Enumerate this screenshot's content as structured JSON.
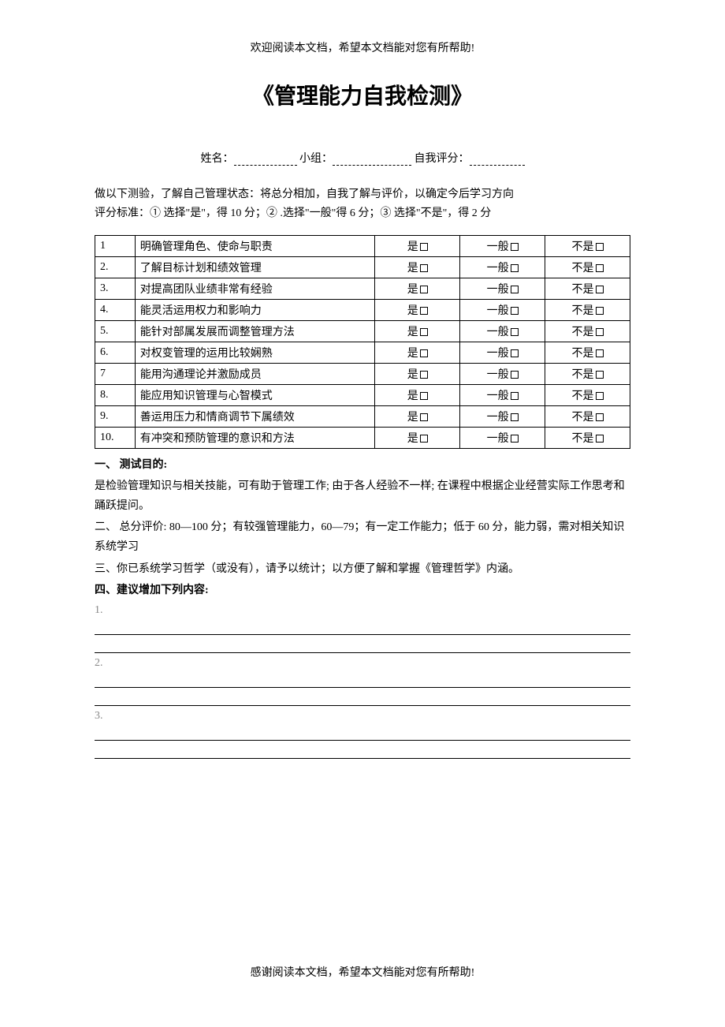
{
  "header_note": "欢迎阅读本文档，希望本文档能对您有所帮助!",
  "title": "《管理能力自我检测》",
  "form": {
    "name_label": "姓名：",
    "group_label": "小组：",
    "score_label": "自我评分："
  },
  "instructions_line1": "做以下测验，了解自己管理状态：将总分相加，自我了解与评价，以确定今后学习方向",
  "instructions_line2": "评分标准：① 选择\"是\"，得 10 分；② .选择\"一般\"得 6 分；③ 选择\"不是\"，得 2 分",
  "options": {
    "yes": "是",
    "normal": "一般",
    "no": "不是"
  },
  "rows": [
    {
      "num": "1",
      "text": "明确管理角色、使命与职责"
    },
    {
      "num": "2.",
      "text": "了解目标计划和绩效管理"
    },
    {
      "num": "3.",
      "text": "对提高团队业绩非常有经验"
    },
    {
      "num": "4.",
      "text": "能灵活运用权力和影响力"
    },
    {
      "num": "5.",
      "text": "能针对部属发展而调整管理方法"
    },
    {
      "num": "6.",
      "text": "对权变管理的运用比较娴熟"
    },
    {
      "num": "7",
      "text": "能用沟通理论并激励成员"
    },
    {
      "num": "8.",
      "text": "能应用知识管理与心智模式"
    },
    {
      "num": "9.",
      "text": "善运用压力和情商调节下属绩效"
    },
    {
      "num": "10.",
      "text": "有冲突和预防管理的意识和方法"
    }
  ],
  "section1_title": "一、 测试目的:",
  "section1_text": "是检验管理知识与相关技能，可有助于管理工作; 由于各人经验不一样; 在课程中根据企业经营实际工作思考和踊跃提问。",
  "section2": "二、 总分评价: 80—100 分；有较强管理能力，60—79；有一定工作能力；低于 60 分，能力弱，需对相关知识系统学习",
  "section3": "三、你已系统学习哲学（或没有），请予以统计；以方便了解和掌握《管理哲学》内涵。",
  "section4": "四、建议增加下列内容:",
  "suggest_nums": [
    "1.",
    "2.",
    "3."
  ],
  "footer_note": "感谢阅读本文档，希望本文档能对您有所帮助!"
}
